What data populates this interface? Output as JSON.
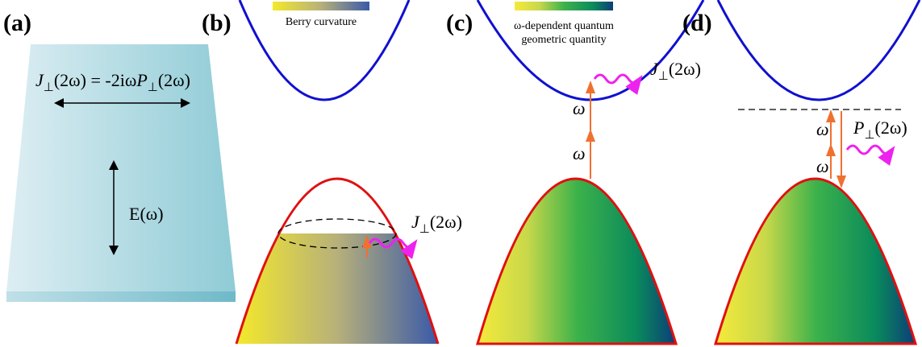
{
  "panels": [
    {
      "label": "(a)",
      "equation": {
        "lhs_symbol": "J",
        "lhs_sub": "⊥",
        "middle": "(2ω) = -2iω",
        "rhs_symbol": "P",
        "rhs_sub": "⊥",
        "rhs_arg": "(2ω)"
      },
      "field": "E(ω)"
    },
    {
      "label": "(b)",
      "colorbar": "Berry curvature",
      "current": {
        "symbol": "J",
        "sub": "⊥",
        "arg": "(2ω)"
      }
    },
    {
      "label": "(c)",
      "colorbar": [
        "ω-dependent quantum",
        "geometric quantity"
      ],
      "current": {
        "symbol": "J",
        "sub": "⊥",
        "arg": "(2ω)"
      },
      "photons": [
        "ω",
        "ω"
      ]
    },
    {
      "label": "(d)",
      "polarization": {
        "symbol": "P",
        "sub": "⊥",
        "arg": "(2ω)"
      },
      "photons": [
        "ω",
        "ω"
      ]
    }
  ]
}
